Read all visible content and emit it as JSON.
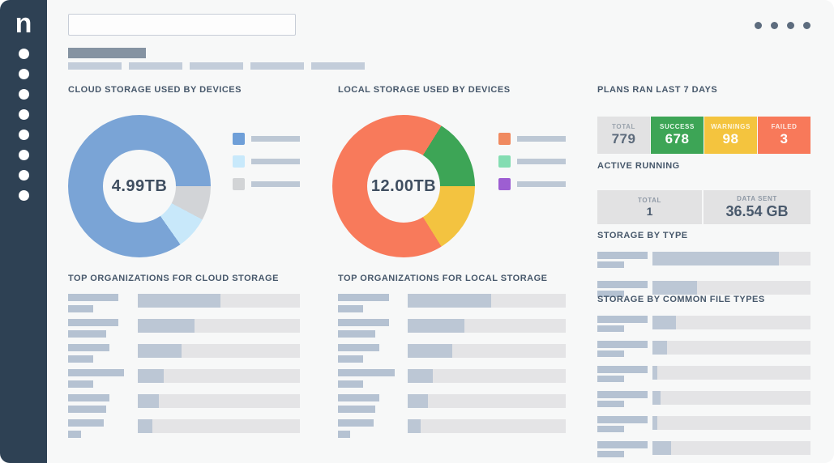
{
  "sidebar": {
    "logo_text": "n",
    "bg_color": "#2e4154",
    "nav_dot_count": 8
  },
  "header": {
    "search_value": "",
    "search_placeholder": "",
    "window_dot_count": 4
  },
  "tabs": {
    "active_tab_color": "#8593a2",
    "skeleton_tab_count": 5
  },
  "cloud_storage": {
    "title": "CLOUD STORAGE USED BY DEVICES",
    "center_label": "4.99TB",
    "donut_segments": [
      {
        "color": "#7aa4d6",
        "start_deg": 0,
        "end_deg": 90
      },
      {
        "color": "#d2d4d7",
        "start_deg": 90,
        "end_deg": 118
      },
      {
        "color": "#c8e8fa",
        "start_deg": 118,
        "end_deg": 145
      },
      {
        "color": "#7aa4d6",
        "start_deg": 145,
        "end_deg": 360
      }
    ],
    "share_pct": {
      "blue": 84.7,
      "gray": 7.8,
      "light_blue": 7.5
    },
    "legend_colors": [
      "#6f9fd8",
      "#c8e9fb",
      "#d2d4d6"
    ]
  },
  "local_storage": {
    "title": "LOCAL STORAGE USED BY DEVICES",
    "center_label": "12.00TB",
    "donut_segments": [
      {
        "color": "#f87a5b",
        "start_deg": 0,
        "end_deg": 32
      },
      {
        "color": "#3da556",
        "start_deg": 32,
        "end_deg": 90
      },
      {
        "color": "#f3c340",
        "start_deg": 90,
        "end_deg": 148
      },
      {
        "color": "#f87a5b",
        "start_deg": 148,
        "end_deg": 360
      }
    ],
    "share_pct": {
      "orange": 67.8,
      "green": 16.1,
      "yellow": 16.1
    },
    "legend_colors": [
      "#f08a60",
      "#84ddb2",
      "#9d5ed2"
    ]
  },
  "top_orgs_cloud": {
    "title": "TOP ORGANIZATIONS FOR CLOUD STORAGE",
    "rows": [
      {
        "label_bar_w": 62,
        "sub_bar_w": 31,
        "fill_pct": 51
      },
      {
        "label_bar_w": 62,
        "sub_bar_w": 47,
        "fill_pct": 35
      },
      {
        "label_bar_w": 51,
        "sub_bar_w": 31,
        "fill_pct": 27
      },
      {
        "label_bar_w": 69,
        "sub_bar_w": 31,
        "fill_pct": 16
      },
      {
        "label_bar_w": 51,
        "sub_bar_w": 47,
        "fill_pct": 13
      },
      {
        "label_bar_w": 44,
        "sub_bar_w": 16,
        "fill_pct": 9
      }
    ]
  },
  "top_orgs_local": {
    "title": "TOP ORGANIZATIONS FOR LOCAL STORAGE",
    "rows": [
      {
        "label_bar_w": 63,
        "sub_bar_w": 31,
        "fill_pct": 53
      },
      {
        "label_bar_w": 63,
        "sub_bar_w": 46,
        "fill_pct": 36
      },
      {
        "label_bar_w": 51,
        "sub_bar_w": 31,
        "fill_pct": 28
      },
      {
        "label_bar_w": 70,
        "sub_bar_w": 31,
        "fill_pct": 16
      },
      {
        "label_bar_w": 51,
        "sub_bar_w": 46,
        "fill_pct": 13
      },
      {
        "label_bar_w": 44,
        "sub_bar_w": 15,
        "fill_pct": 8
      }
    ]
  },
  "plans": {
    "title": "PLANS RAN LAST 7 DAYS",
    "stats": [
      {
        "label": "TOTAL",
        "value": "779",
        "bg": "#e2e2e3",
        "label_color": "#9aa3ad",
        "value_color": "#5d6b7c"
      },
      {
        "label": "SUCCESS",
        "value": "678",
        "bg": "#3da556",
        "label_color": "#eafaee",
        "value_color": "#ffffff"
      },
      {
        "label": "WARNINGS",
        "value": "98",
        "bg": "#f4c43e",
        "label_color": "#fdf6e2",
        "value_color": "#ffffff"
      },
      {
        "label": "FAILED",
        "value": "3",
        "bg": "#f8795a",
        "label_color": "#fdeae4",
        "value_color": "#ffffff"
      }
    ]
  },
  "active_running": {
    "title": "ACTIVE RUNNING",
    "stats": [
      {
        "label": "TOTAL",
        "value": "1"
      },
      {
        "label": "DATA SENT",
        "value": "36.54 GB"
      }
    ]
  },
  "storage_by_type": {
    "title": "STORAGE BY TYPE",
    "rows": [
      {
        "label_bar_w": 62,
        "sub_bar_w": 33,
        "fill_pct": 80
      },
      {
        "label_bar_w": 62,
        "sub_bar_w": 33,
        "fill_pct": 28
      }
    ]
  },
  "storage_by_file_types": {
    "title": "STORAGE BY COMMON FILE TYPES",
    "rows": [
      {
        "label_bar_w": 62,
        "sub_bar_w": 33,
        "fill_pct": 15
      },
      {
        "label_bar_w": 62,
        "sub_bar_w": 33,
        "fill_pct": 9
      },
      {
        "label_bar_w": 62,
        "sub_bar_w": 33,
        "fill_pct": 3
      },
      {
        "label_bar_w": 62,
        "sub_bar_w": 33,
        "fill_pct": 5
      },
      {
        "label_bar_w": 62,
        "sub_bar_w": 33,
        "fill_pct": 3
      },
      {
        "label_bar_w": 62,
        "sub_bar_w": 33,
        "fill_pct": 12
      }
    ]
  }
}
